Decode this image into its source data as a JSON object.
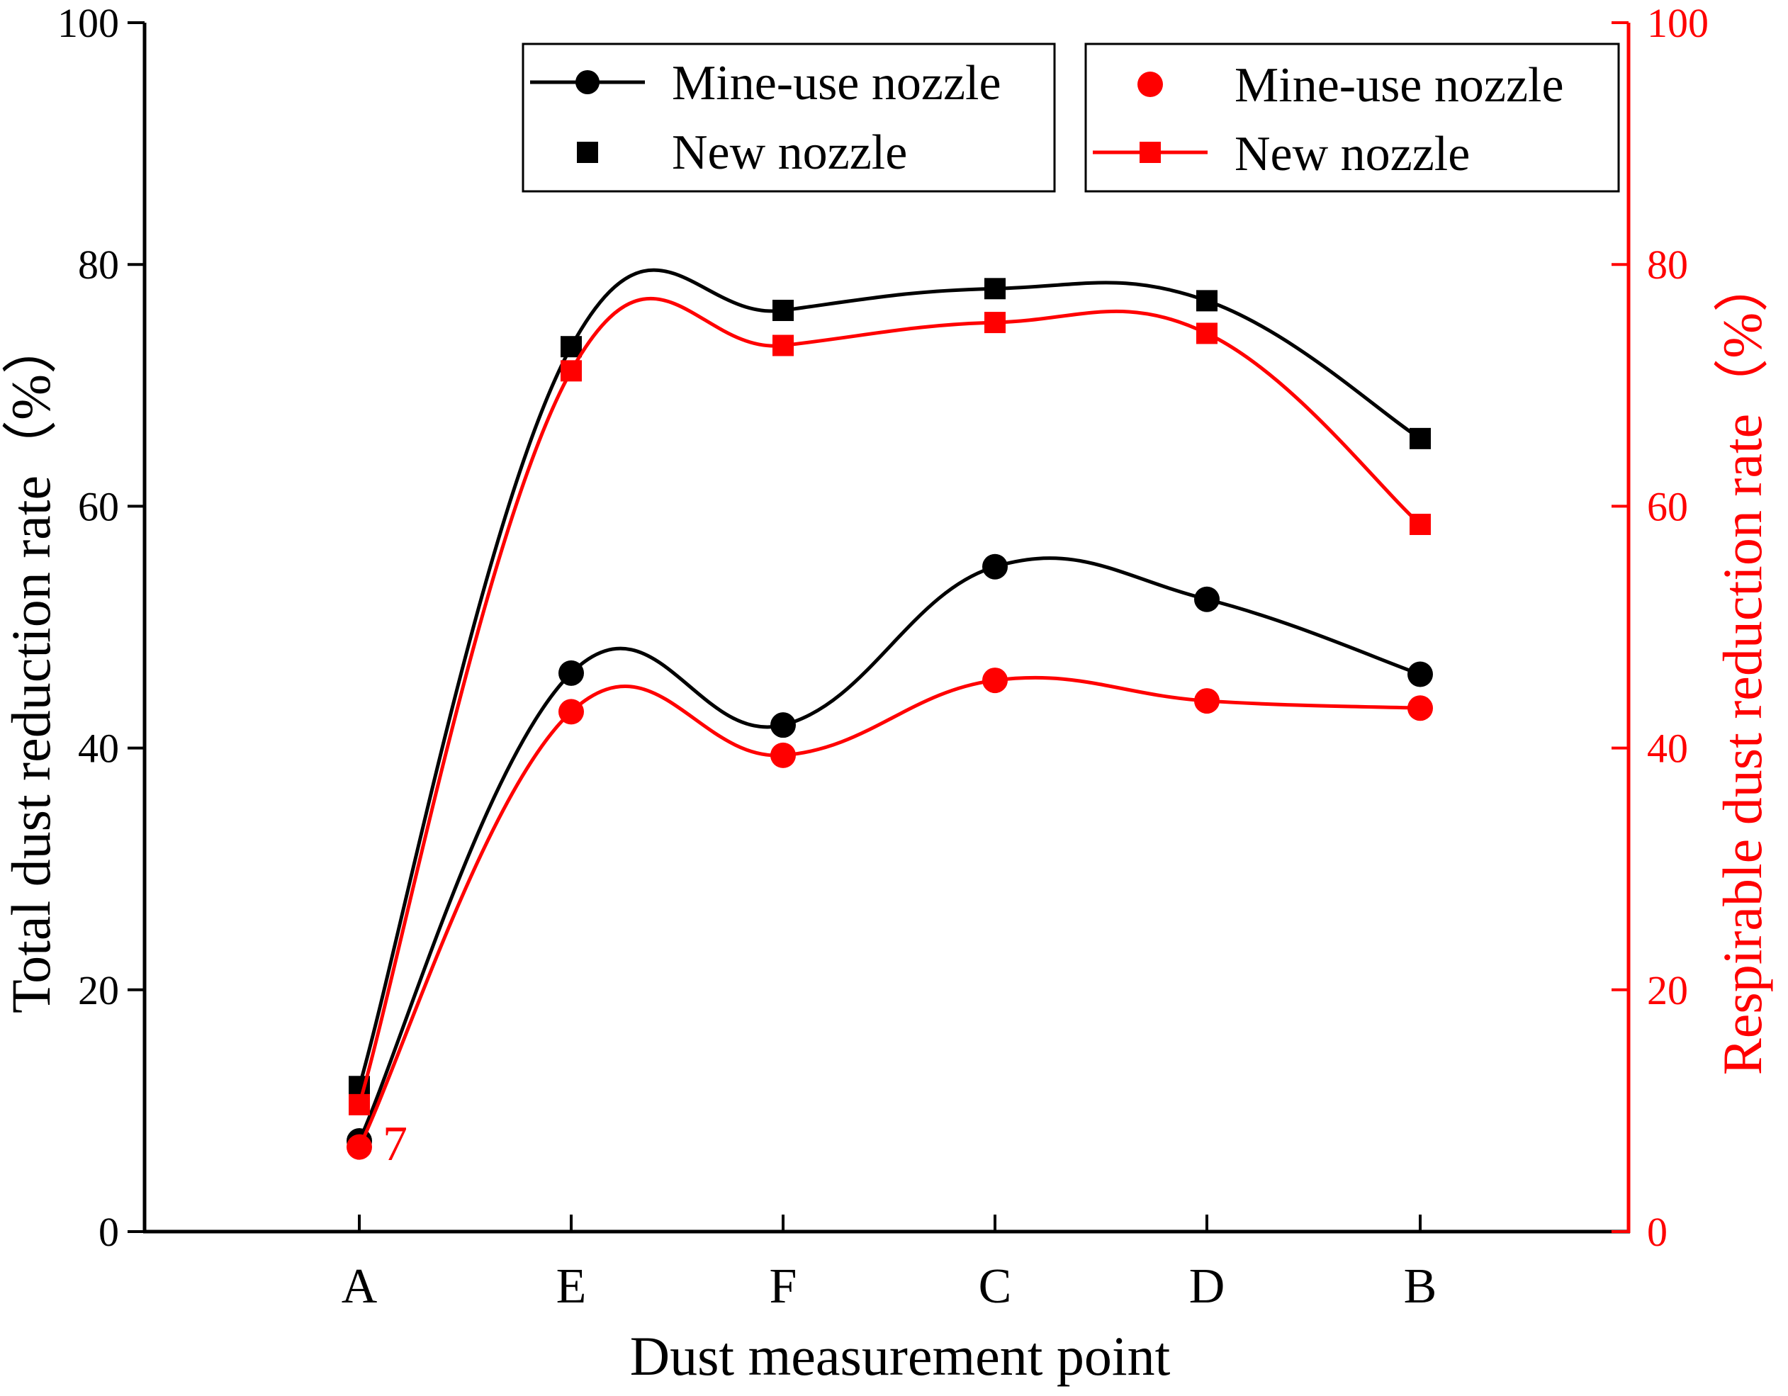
{
  "chart_data": {
    "type": "line",
    "categories": [
      "A",
      "E",
      "F",
      "C",
      "D",
      "B"
    ],
    "xlabel": "Dust measurement point",
    "ylabel_left": "Total dust reduction rate（%）",
    "ylabel_right": "Respirable dust reduction rate（%）",
    "ylim": [
      0,
      100
    ],
    "yticks": [
      0,
      20,
      40,
      60,
      80,
      100
    ],
    "colors": {
      "left_axis": "#000000",
      "right_axis": "#ff0000"
    },
    "series": [
      {
        "name": "Mine-use nozzle",
        "axis": "left",
        "marker": "circle",
        "color": "#000000",
        "values": [
          7.5,
          46.2,
          41.9,
          55.0,
          52.3,
          46.1
        ]
      },
      {
        "name": "New nozzle",
        "axis": "left",
        "marker": "square",
        "color": "#000000",
        "values": [
          12.0,
          73.2,
          76.2,
          78.0,
          77.0,
          65.6
        ]
      },
      {
        "name": "Mine-use nozzle",
        "axis": "right",
        "marker": "circle",
        "color": "#ff0000",
        "values": [
          7.0,
          43.0,
          39.4,
          45.6,
          43.9,
          43.3
        ]
      },
      {
        "name": "New nozzle",
        "axis": "right",
        "marker": "square",
        "color": "#ff0000",
        "values": [
          10.5,
          71.2,
          73.3,
          75.2,
          74.3,
          58.5
        ]
      }
    ],
    "legends": [
      {
        "group": "left",
        "entries": [
          {
            "label": "Mine-use nozzle",
            "marker": "circle",
            "line": true
          },
          {
            "label": "New nozzle",
            "marker": "square",
            "line": false
          }
        ]
      },
      {
        "group": "right",
        "entries": [
          {
            "label": "Mine-use nozzle",
            "marker": "circle",
            "line": false
          },
          {
            "label": "New nozzle",
            "marker": "square",
            "line": true
          }
        ]
      }
    ],
    "annotations": [
      {
        "text": "7",
        "category": "A",
        "series": 2
      }
    ]
  }
}
